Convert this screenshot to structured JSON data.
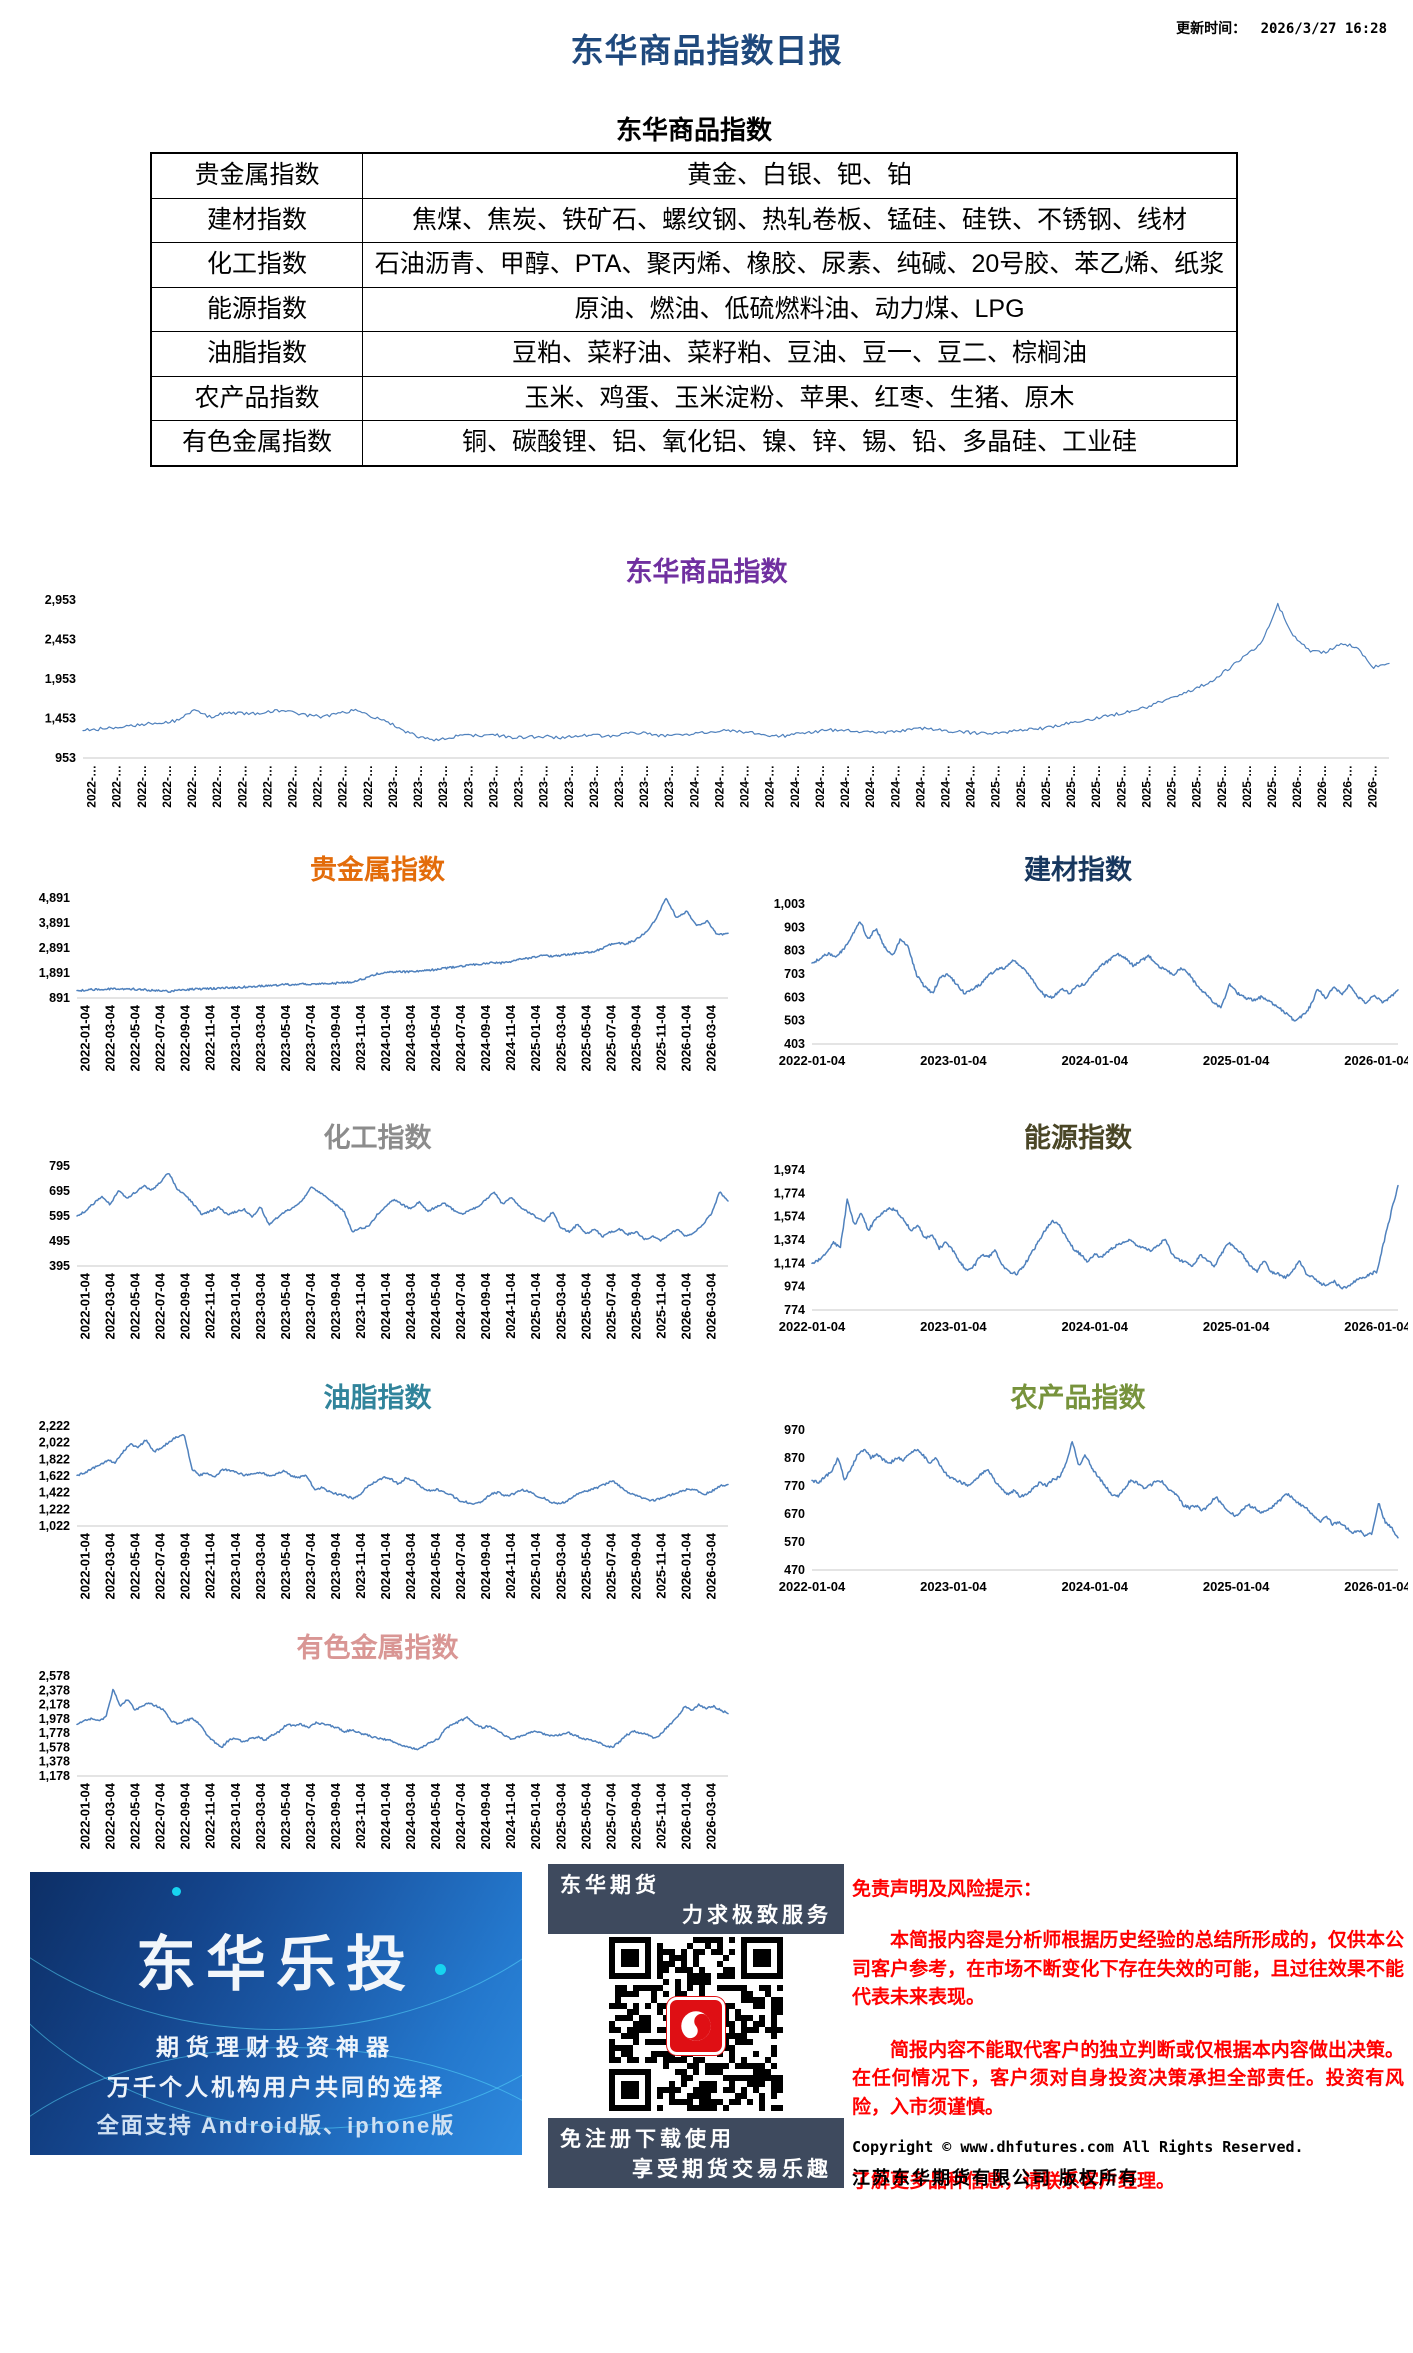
{
  "header": {
    "title": "东华商品指数日报",
    "title_color": "#1F497D",
    "update_label": "更新时间：",
    "update_time": "2026/3/27 16:28"
  },
  "table": {
    "title": "东华商品指数",
    "rows": [
      {
        "category": "贵金属指数",
        "items": "黄金、白银、钯、铂"
      },
      {
        "category": "建材指数",
        "items": "焦煤、焦炭、铁矿石、螺纹钢、热轧卷板、锰硅、硅铁、不锈钢、线材"
      },
      {
        "category": "化工指数",
        "items": "石油沥青、甲醇、PTA、聚丙烯、橡胶、尿素、纯碱、20号胶、苯乙烯、纸浆"
      },
      {
        "category": "能源指数",
        "items": "原油、燃油、低硫燃料油、动力煤、LPG"
      },
      {
        "category": "油脂指数",
        "items": "豆粕、菜籽油、菜籽粕、豆油、豆一、豆二、棕榈油"
      },
      {
        "category": "农产品指数",
        "items": "玉米、鸡蛋、玉米淀粉、苹果、红枣、生猪、原木"
      },
      {
        "category": "有色金属指数",
        "items": "铜、碳酸锂、铝、氧化铝、镍、锌、锡、铅、多晶硅、工业硅"
      }
    ]
  },
  "chart_data": [
    {
      "type": "line",
      "key": "composite",
      "title": "东华商品指数",
      "title_color": "#7030A0",
      "series_color": "#4F81BD",
      "ylim": [
        953,
        2953
      ],
      "yticks": [
        "953",
        "1,453",
        "1,953",
        "2,453",
        "2,953"
      ],
      "xtick_rotate": true,
      "grid": false,
      "xticks": [
        "2022-…",
        "2022-…",
        "2022-…",
        "2022-…",
        "2022-…",
        "2022-…",
        "2022-…",
        "2022-…",
        "2022-…",
        "2022-…",
        "2022-…",
        "2022-…",
        "2023-…",
        "2023-…",
        "2023-…",
        "2023-…",
        "2023-…",
        "2023-…",
        "2023-…",
        "2023-…",
        "2023-…",
        "2023-…",
        "2023-…",
        "2023-…",
        "2024-…",
        "2024-…",
        "2024-…",
        "2024-…",
        "2024-…",
        "2024-…",
        "2024-…",
        "2024-…",
        "2024-…",
        "2024-…",
        "2024-…",
        "2024-…",
        "2025-…",
        "2025-…",
        "2025-…",
        "2025-…",
        "2025-…",
        "2025-…",
        "2025-…",
        "2025-…",
        "2025-…",
        "2025-…",
        "2025-…",
        "2025-…",
        "2026-…",
        "2026-…",
        "2026-…",
        "2026-…"
      ],
      "values": [
        1300,
        1320,
        1340,
        1365,
        1385,
        1400,
        1430,
        1560,
        1470,
        1530,
        1520,
        1510,
        1555,
        1535,
        1495,
        1475,
        1515,
        1555,
        1490,
        1430,
        1310,
        1230,
        1180,
        1215,
        1245,
        1230,
        1240,
        1210,
        1218,
        1228,
        1205,
        1228,
        1248,
        1222,
        1258,
        1268,
        1242,
        1232,
        1252,
        1278,
        1298,
        1288,
        1268,
        1242,
        1232,
        1258,
        1288,
        1308,
        1298,
        1278,
        1272,
        1292,
        1312,
        1328,
        1298,
        1282,
        1272,
        1262,
        1282,
        1302,
        1322,
        1355,
        1395,
        1435,
        1472,
        1512,
        1552,
        1612,
        1692,
        1772,
        1845,
        1945,
        2095,
        2245,
        2395,
        2905,
        2495,
        2305,
        2285,
        2415,
        2345,
        2105,
        2150
      ]
    },
    {
      "type": "line",
      "key": "precious",
      "title": "贵金属指数",
      "title_color": "#E36C0A",
      "series_color": "#4F81BD",
      "ylim": [
        891,
        4891
      ],
      "yticks": [
        "891",
        "1,891",
        "2,891",
        "3,891",
        "4,891"
      ],
      "xtick_rotate": true,
      "grid": false,
      "xticks": [
        "2022-01-04",
        "2022-03-04",
        "2022-05-04",
        "2022-07-04",
        "2022-09-04",
        "2022-11-04",
        "2023-01-04",
        "2023-03-04",
        "2023-05-04",
        "2023-07-04",
        "2023-09-04",
        "2023-11-04",
        "2024-01-04",
        "2024-03-04",
        "2024-05-04",
        "2024-07-04",
        "2024-09-04",
        "2024-11-04",
        "2025-01-04",
        "2025-03-04",
        "2025-05-04",
        "2025-07-04",
        "2025-09-04",
        "2025-11-04",
        "2026-01-04",
        "2026-03-04"
      ],
      "values": [
        1190,
        1215,
        1235,
        1255,
        1262,
        1250,
        1232,
        1205,
        1185,
        1150,
        1210,
        1240,
        1252,
        1268,
        1288,
        1302,
        1322,
        1352,
        1382,
        1402,
        1422,
        1432,
        1452,
        1442,
        1462,
        1482,
        1502,
        1552,
        1702,
        1852,
        1902,
        1952,
        1932,
        1962,
        1992,
        2052,
        2102,
        2152,
        2202,
        2252,
        2302,
        2282,
        2352,
        2452,
        2502,
        2602,
        2552,
        2602,
        2652,
        2702,
        2752,
        2902,
        3102,
        3052,
        3202,
        3502,
        4002,
        4891,
        4100,
        4350,
        3800,
        3950,
        3400,
        3480
      ]
    },
    {
      "type": "line",
      "key": "building",
      "title": "建材指数",
      "title_color": "#17375E",
      "series_color": "#4F81BD",
      "ylim": [
        403,
        1003
      ],
      "yticks": [
        "403",
        "503",
        "603",
        "703",
        "803",
        "903",
        "1,003"
      ],
      "xtick_rotate": false,
      "grid": false,
      "xticks": [
        "2022-01-04",
        "2023-01-04",
        "2024-01-04",
        "2025-01-04",
        "2026-01-04"
      ],
      "values": [
        750,
        770,
        790,
        780,
        810,
        870,
        930,
        850,
        900,
        820,
        780,
        850,
        820,
        700,
        650,
        620,
        690,
        700,
        660,
        620,
        640,
        660,
        700,
        720,
        730,
        760,
        740,
        700,
        650,
        610,
        600,
        640,
        620,
        650,
        660,
        700,
        740,
        760,
        790,
        770,
        740,
        760,
        780,
        740,
        720,
        700,
        730,
        700,
        650,
        620,
        580,
        560,
        660,
        620,
        600,
        590,
        605,
        585,
        565,
        535,
        505,
        520,
        560,
        640,
        600,
        645,
        615,
        655,
        605,
        580,
        615,
        580,
        600,
        635
      ]
    },
    {
      "type": "line",
      "key": "chemical",
      "title": "化工指数",
      "title_color": "#8C8C8C",
      "series_color": "#4F81BD",
      "ylim": [
        395,
        795
      ],
      "yticks": [
        "395",
        "495",
        "595",
        "695",
        "795"
      ],
      "xtick_rotate": true,
      "grid": false,
      "xticks": [
        "2022-01-04",
        "2022-03-04",
        "2022-05-04",
        "2022-07-04",
        "2022-09-04",
        "2022-11-04",
        "2023-01-04",
        "2023-03-04",
        "2023-05-04",
        "2023-07-04",
        "2023-09-04",
        "2023-11-04",
        "2024-01-04",
        "2024-03-04",
        "2024-05-04",
        "2024-07-04",
        "2024-09-04",
        "2024-11-04",
        "2025-01-04",
        "2025-03-04",
        "2025-05-04",
        "2025-07-04",
        "2025-09-04",
        "2025-11-04",
        "2026-01-04",
        "2026-03-04"
      ],
      "values": [
        595,
        615,
        645,
        675,
        640,
        700,
        665,
        690,
        715,
        700,
        730,
        770,
        700,
        680,
        640,
        600,
        615,
        630,
        600,
        612,
        622,
        592,
        632,
        560,
        590,
        612,
        632,
        655,
        712,
        690,
        668,
        640,
        612,
        532,
        545,
        555,
        602,
        632,
        662,
        640,
        622,
        652,
        612,
        632,
        645,
        622,
        602,
        615,
        632,
        662,
        690,
        640,
        672,
        632,
        612,
        592,
        572,
        612,
        545,
        532,
        562,
        522,
        545,
        512,
        532,
        542,
        522,
        532,
        502,
        512,
        495,
        522,
        542,
        512,
        532,
        562,
        602,
        690,
        655
      ]
    },
    {
      "type": "line",
      "key": "energy",
      "title": "能源指数",
      "title_color": "#4A4626",
      "series_color": "#4F81BD",
      "ylim": [
        774,
        1974
      ],
      "yticks": [
        "774",
        "974",
        "1,174",
        "1,374",
        "1,574",
        "1,774",
        "1,974"
      ],
      "xtick_rotate": false,
      "grid": false,
      "xticks": [
        "2022-01-04",
        "2023-01-04",
        "2024-01-04",
        "2025-01-04",
        "2026-01-04"
      ],
      "values": [
        1174,
        1205,
        1255,
        1355,
        1305,
        1720,
        1500,
        1605,
        1455,
        1555,
        1605,
        1650,
        1620,
        1552,
        1455,
        1502,
        1385,
        1425,
        1302,
        1355,
        1282,
        1182,
        1105,
        1155,
        1252,
        1232,
        1282,
        1152,
        1102,
        1082,
        1152,
        1252,
        1352,
        1455,
        1540,
        1502,
        1402,
        1302,
        1252,
        1185,
        1252,
        1222,
        1282,
        1322,
        1352,
        1382,
        1322,
        1302,
        1282,
        1322,
        1382,
        1252,
        1202,
        1182,
        1152,
        1252,
        1202,
        1152,
        1252,
        1352,
        1302,
        1252,
        1152,
        1102,
        1202,
        1102,
        1082,
        1052,
        1102,
        1202,
        1082,
        1052,
        1002,
        982,
        1022,
        952,
        982,
        1022,
        1052,
        1082,
        1102,
        1355,
        1605,
        1840
      ]
    },
    {
      "type": "line",
      "key": "oils",
      "title": "油脂指数",
      "title_color": "#31849B",
      "series_color": "#4F81BD",
      "ylim": [
        1022,
        2222
      ],
      "yticks": [
        "1,022",
        "1,222",
        "1,422",
        "1,622",
        "1,822",
        "2,022",
        "2,222"
      ],
      "xtick_rotate": true,
      "grid": false,
      "xticks": [
        "2022-01-04",
        "2022-03-04",
        "2022-05-04",
        "2022-07-04",
        "2022-09-04",
        "2022-11-04",
        "2023-01-04",
        "2023-03-04",
        "2023-05-04",
        "2023-07-04",
        "2023-09-04",
        "2023-11-04",
        "2024-01-04",
        "2024-03-04",
        "2024-05-04",
        "2024-07-04",
        "2024-09-04",
        "2024-11-04",
        "2025-01-04",
        "2025-03-04",
        "2025-05-04",
        "2025-07-04",
        "2025-09-04",
        "2025-11-04",
        "2026-01-04",
        "2026-03-04"
      ],
      "values": [
        1630,
        1660,
        1710,
        1760,
        1810,
        1785,
        1910,
        2010,
        1960,
        2060,
        1910,
        1960,
        2030,
        2090,
        2110,
        1710,
        1630,
        1660,
        1610,
        1705,
        1685,
        1660,
        1630,
        1655,
        1665,
        1625,
        1645,
        1685,
        1625,
        1605,
        1625,
        1460,
        1485,
        1430,
        1405,
        1385,
        1355,
        1405,
        1505,
        1555,
        1605,
        1585,
        1525,
        1605,
        1565,
        1485,
        1445,
        1465,
        1425,
        1385,
        1325,
        1305,
        1285,
        1325,
        1405,
        1425,
        1385,
        1405,
        1455,
        1435,
        1385,
        1355,
        1305,
        1285,
        1325,
        1385,
        1425,
        1455,
        1485,
        1525,
        1565,
        1485,
        1425,
        1385,
        1355,
        1325,
        1345,
        1385,
        1405,
        1445,
        1465,
        1445,
        1405,
        1445,
        1505,
        1520
      ]
    },
    {
      "type": "line",
      "key": "agri",
      "title": "农产品指数",
      "title_color": "#77933C",
      "series_color": "#4F81BD",
      "ylim": [
        470,
        970
      ],
      "yticks": [
        "470",
        "570",
        "670",
        "770",
        "870",
        "970"
      ],
      "xtick_rotate": false,
      "grid": false,
      "xticks": [
        "2022-01-04",
        "2023-01-04",
        "2024-01-04",
        "2025-01-04",
        "2026-01-04"
      ],
      "values": [
        790,
        782,
        802,
        822,
        872,
        792,
        832,
        882,
        902,
        872,
        882,
        862,
        852,
        872,
        862,
        882,
        902,
        882,
        852,
        872,
        832,
        802,
        792,
        782,
        772,
        792,
        812,
        832,
        792,
        762,
        742,
        752,
        732,
        742,
        762,
        782,
        772,
        792,
        802,
        852,
        930,
        842,
        882,
        832,
        802,
        772,
        742,
        732,
        762,
        792,
        782,
        762,
        772,
        792,
        782,
        752,
        742,
        702,
        692,
        702,
        682,
        702,
        732,
        702,
        682,
        662,
        682,
        702,
        692,
        672,
        682,
        702,
        722,
        742,
        722,
        702,
        692,
        662,
        642,
        662,
        632,
        642,
        622,
        602,
        612,
        592,
        602,
        712,
        642,
        622,
        585
      ]
    },
    {
      "type": "line",
      "key": "nonferrous",
      "title": "有色金属指数",
      "title_color": "#D99694",
      "series_color": "#4F81BD",
      "ylim": [
        1178,
        2578
      ],
      "yticks": [
        "1,178",
        "1,378",
        "1,578",
        "1,778",
        "1,978",
        "2,178",
        "2,378",
        "2,578"
      ],
      "xtick_rotate": true,
      "grid": false,
      "xticks": [
        "2022-01-04",
        "2022-03-04",
        "2022-05-04",
        "2022-07-04",
        "2022-09-04",
        "2022-11-04",
        "2023-01-04",
        "2023-03-04",
        "2023-05-04",
        "2023-07-04",
        "2023-09-04",
        "2023-11-04",
        "2024-01-04",
        "2024-03-04",
        "2024-05-04",
        "2024-07-04",
        "2024-09-04",
        "2024-11-04",
        "2025-01-04",
        "2025-03-04",
        "2025-05-04",
        "2025-07-04",
        "2025-09-04",
        "2025-11-04",
        "2026-01-04",
        "2026-03-04"
      ],
      "values": [
        1900,
        1952,
        1982,
        1952,
        2002,
        2400,
        2152,
        2252,
        2102,
        2152,
        2202,
        2152,
        2102,
        1952,
        1902,
        1952,
        1982,
        1902,
        1752,
        1652,
        1582,
        1682,
        1702,
        1652,
        1702,
        1722,
        1682,
        1752,
        1802,
        1902,
        1882,
        1902,
        1852,
        1922,
        1902,
        1882,
        1852,
        1802,
        1822,
        1782,
        1752,
        1722,
        1702,
        1682,
        1652,
        1602,
        1582,
        1552,
        1602,
        1652,
        1702,
        1852,
        1902,
        1952,
        2002,
        1902,
        1852,
        1882,
        1822,
        1752,
        1702,
        1722,
        1752,
        1802,
        1782,
        1752,
        1742,
        1762,
        1782,
        1742,
        1702,
        1682,
        1652,
        1602,
        1582,
        1652,
        1752,
        1802,
        1782,
        1752,
        1702,
        1802,
        1902,
        2002,
        2152,
        2102,
        2182,
        2122,
        2152,
        2102,
        2052
      ]
    }
  ],
  "footer": {
    "banner": {
      "title": "东华乐投",
      "line1": "期货理财投资神器",
      "line2": "万千个人机构用户共同的选择",
      "line3": "全面支持 Android版、iphone版"
    },
    "qr": {
      "top_line1": "东华期货",
      "top_line2": "力求极致服务",
      "bottom_line1": "免注册下载使用",
      "bottom_line2": "享受期货交易乐趣",
      "bar_color": "#3e4a5e",
      "logo_color": "#df0f14"
    },
    "disclaimer": {
      "heading": "免责声明及风险提示：",
      "paragraphs": [
        "本简报内容是分析师根据历史经验的总结所形成的，仅供本公司客户参考，在市场不断变化下存在失效的可能，且过往效果不能代表未来表现。",
        "简报内容不能取代客户的独立判断或仅根据本内容做出决策。在任何情况下，客户须对自身投资决策承担全部责任。投资有风险，入市须谨慎。"
      ],
      "more_info": "了解更多品种信息，请联系客户经理。",
      "text_color": "#FF0000"
    },
    "copyright": {
      "line1": "Copyright © www.dhfutures.com  All Rights Reserved.",
      "line2": "江苏东华期货有限公司  版权所有"
    }
  }
}
